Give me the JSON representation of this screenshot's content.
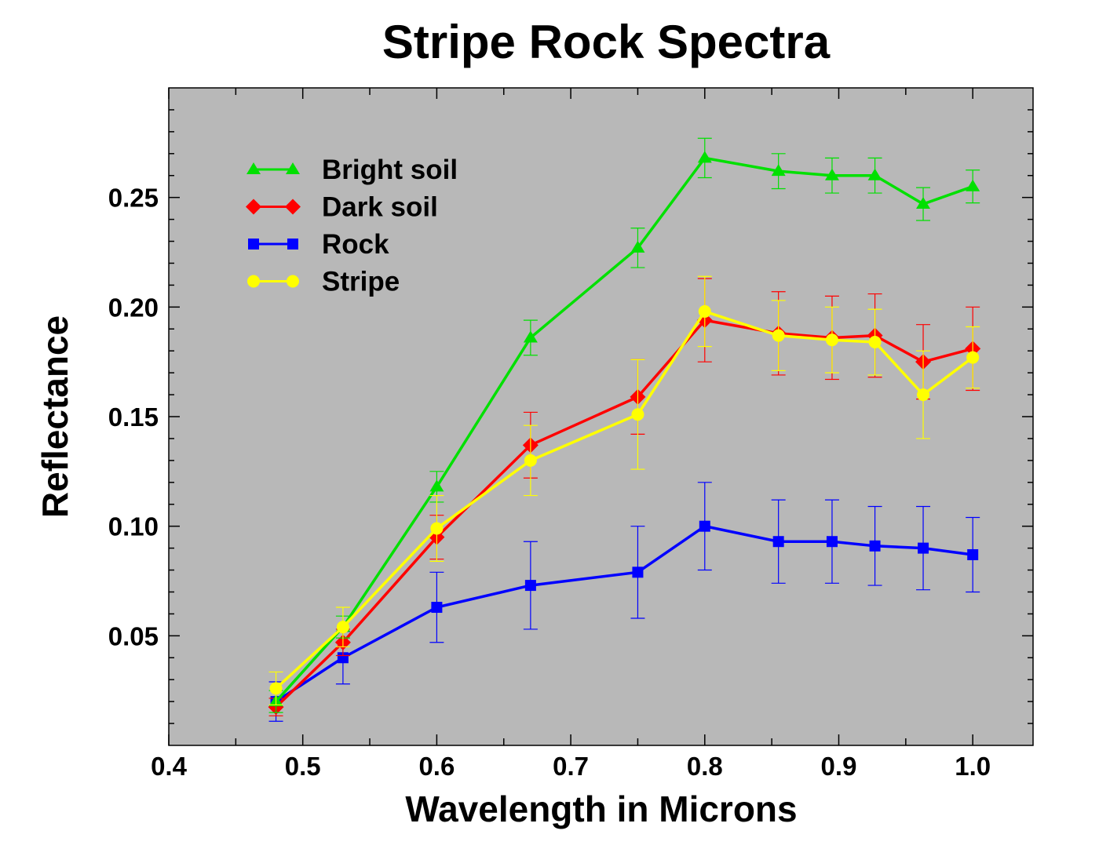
{
  "chart_data": {
    "type": "line",
    "title": "Stripe Rock Spectra",
    "xlabel": "Wavelength in Microns",
    "ylabel": "Reflectance",
    "xlim": [
      0.4,
      1.045
    ],
    "ylim": [
      0.0,
      0.3
    ],
    "xticks": [
      "0.4",
      "0.5",
      "0.6",
      "0.7",
      "0.8",
      "0.9",
      "1.0"
    ],
    "yticks": [
      "0.05",
      "0.10",
      "0.15",
      "0.20",
      "0.25"
    ],
    "grid": false,
    "background": "#b8b8b8",
    "legend_position": "top-left",
    "x": [
      0.48,
      0.53,
      0.6,
      0.67,
      0.75,
      0.8,
      0.855,
      0.895,
      0.927,
      0.963,
      1.0
    ],
    "series": [
      {
        "name": "Rock",
        "color": "#0000ff",
        "marker": "square",
        "values": [
          0.02,
          0.04,
          0.063,
          0.073,
          0.079,
          0.1,
          0.093,
          0.093,
          0.091,
          0.09,
          0.087
        ],
        "errors": [
          0.009,
          0.012,
          0.016,
          0.02,
          0.021,
          0.02,
          0.019,
          0.019,
          0.018,
          0.019,
          0.017
        ]
      },
      {
        "name": "Dark soil",
        "color": "#ff0000",
        "marker": "diamond",
        "values": [
          0.0175,
          0.047,
          0.095,
          0.137,
          0.159,
          0.194,
          0.188,
          0.186,
          0.187,
          0.175,
          0.181
        ],
        "errors": [
          0.004,
          0.006,
          0.01,
          0.015,
          0.017,
          0.019,
          0.019,
          0.019,
          0.019,
          0.017,
          0.019
        ]
      },
      {
        "name": "Bright soil",
        "color": "#00e000",
        "marker": "triangle",
        "values": [
          0.02,
          0.054,
          0.118,
          0.186,
          0.227,
          0.268,
          0.262,
          0.26,
          0.26,
          0.247,
          0.255
        ],
        "errors": [
          0.005,
          0.005,
          0.007,
          0.008,
          0.009,
          0.009,
          0.008,
          0.008,
          0.008,
          0.0075,
          0.0075
        ]
      },
      {
        "name": "Stripe",
        "color": "#ffff00",
        "marker": "circle",
        "values": [
          0.026,
          0.054,
          0.099,
          0.13,
          0.151,
          0.198,
          0.187,
          0.185,
          0.184,
          0.16,
          0.177
        ],
        "errors": [
          0.0075,
          0.009,
          0.015,
          0.016,
          0.025,
          0.016,
          0.016,
          0.015,
          0.015,
          0.02,
          0.014
        ]
      }
    ],
    "legend_order": [
      "Bright soil",
      "Dark soil",
      "Rock",
      "Stripe"
    ]
  }
}
